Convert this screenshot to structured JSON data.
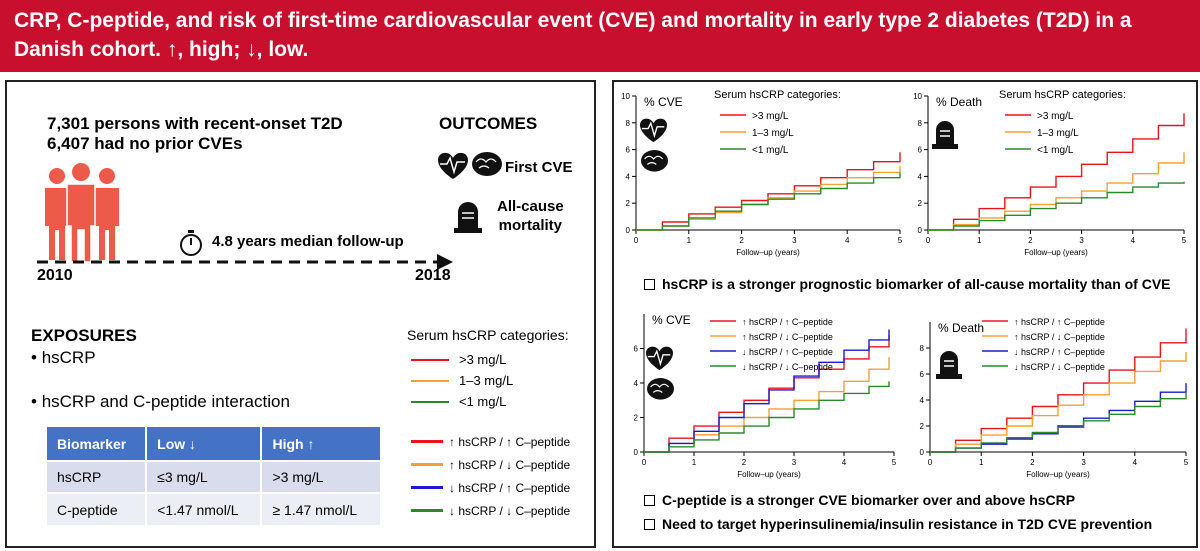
{
  "title": "CRP, C-peptide, and risk of first-time cardiovascular event (CVE) and mortality in early type 2 diabetes (T2D) in a Danish cohort. ↑, high; ↓, low.",
  "left": {
    "cohort_line1": "7,301 persons with recent-onset T2D",
    "cohort_line2": "6,407 had no prior CVEs",
    "outcomes_heading": "OUTCOMES",
    "outcome_cve": "First CVE",
    "outcome_mortality_1": "All-cause",
    "outcome_mortality_2": "mortality",
    "followup": "4.8 years median follow-up",
    "year_start": "2010",
    "year_end": "2018",
    "exposures_heading": "EXPOSURES",
    "exposures": [
      "hsCRP",
      "hsCRP and C-peptide interaction"
    ],
    "table": {
      "headers": [
        "Biomarker",
        "Low ↓",
        "High ↑"
      ],
      "rows": [
        [
          "hsCRP",
          "≤3 mg/L",
          ">3 mg/L"
        ],
        [
          "C-peptide",
          "<1.47 nmol/L",
          "≥ 1.47 nmol/L"
        ]
      ]
    },
    "legend_hs_title": "Serum hsCRP categories:",
    "legend_hs": [
      {
        "label": ">3 mg/L",
        "color": "#e8141c"
      },
      {
        "label": "1–3 mg/L",
        "color": "#f5a133"
      },
      {
        "label": "<1 mg/L",
        "color": "#2a8a2a"
      }
    ],
    "legend_int": [
      {
        "label": "↑ hsCRP / ↑ C–peptide",
        "color": "#e8141c"
      },
      {
        "label": "↑ hsCRP / ↓ C–peptide",
        "color": "#f5a133"
      },
      {
        "label": "↓ hsCRP / ↑ C–peptide",
        "color": "#1a1ad0"
      },
      {
        "label": "↓ hsCRP / ↓ C–peptide",
        "color": "#2a8a2a"
      }
    ]
  },
  "right": {
    "takeaway_1": "hsCRP is a stronger prognostic biomarker of all-cause mortality than of CVE",
    "takeaway_2": "C-peptide is a stronger CVE biomarker over and above hsCRP",
    "takeaway_3": "Need to target hyperinsulinemia/insulin resistance in T2D CVE prevention"
  },
  "chart_data": [
    {
      "type": "line",
      "id": "cve-hscrp",
      "ylabel": "% CVE",
      "xlabel": "Follow–up (years)",
      "legend_title": "Serum hsCRP categories:",
      "xlim": [
        0,
        5
      ],
      "ylim": [
        0,
        10
      ],
      "xticks": [
        0,
        1,
        2,
        3,
        4,
        5
      ],
      "yticks": [
        0,
        2,
        4,
        6,
        8,
        10
      ],
      "series": [
        {
          "name": ">3 mg/L",
          "color": "#e8141c",
          "x": [
            0,
            0.5,
            1,
            1.5,
            2,
            2.5,
            3,
            3.5,
            4,
            4.5,
            5
          ],
          "y": [
            0,
            0.6,
            1.2,
            1.7,
            2.2,
            2.7,
            3.3,
            3.9,
            4.5,
            5.1,
            5.8
          ]
        },
        {
          "name": "1–3 mg/L",
          "color": "#f5a133",
          "x": [
            0,
            0.5,
            1,
            1.5,
            2,
            2.5,
            3,
            3.5,
            4,
            4.5,
            5
          ],
          "y": [
            0,
            0.3,
            0.8,
            1.3,
            1.9,
            2.4,
            2.9,
            3.4,
            3.9,
            4.3,
            4.8
          ]
        },
        {
          "name": "<1 mg/L",
          "color": "#2a8a2a",
          "x": [
            0,
            0.5,
            1,
            1.5,
            2,
            2.5,
            3,
            3.5,
            4,
            4.5,
            5
          ],
          "y": [
            0,
            0.3,
            0.9,
            1.4,
            1.9,
            2.3,
            2.7,
            3.1,
            3.5,
            3.9,
            4.3
          ]
        }
      ]
    },
    {
      "type": "line",
      "id": "death-hscrp",
      "ylabel": "% Death",
      "xlabel": "Follow–up (years)",
      "legend_title": "Serum hsCRP categories:",
      "xlim": [
        0,
        5
      ],
      "ylim": [
        0,
        10
      ],
      "xticks": [
        0,
        1,
        2,
        3,
        4,
        5
      ],
      "yticks": [
        0,
        2,
        4,
        6,
        8,
        10
      ],
      "series": [
        {
          "name": ">3 mg/L",
          "color": "#e8141c",
          "x": [
            0,
            0.5,
            1,
            1.5,
            2,
            2.5,
            3,
            3.5,
            4,
            4.5,
            5
          ],
          "y": [
            0,
            0.8,
            1.6,
            2.4,
            3.2,
            4.0,
            4.9,
            5.8,
            6.8,
            7.8,
            8.7
          ]
        },
        {
          "name": "1–3 mg/L",
          "color": "#f5a133",
          "x": [
            0,
            0.5,
            1,
            1.5,
            2,
            2.5,
            3,
            3.5,
            4,
            4.5,
            5
          ],
          "y": [
            0,
            0.4,
            0.9,
            1.4,
            1.9,
            2.4,
            2.9,
            3.5,
            4.2,
            5.0,
            5.8
          ]
        },
        {
          "name": "<1 mg/L",
          "color": "#2a8a2a",
          "x": [
            0,
            0.5,
            1,
            1.5,
            2,
            2.5,
            3,
            3.5,
            4,
            4.5,
            5
          ],
          "y": [
            0,
            0.3,
            0.7,
            1.1,
            1.6,
            2.0,
            2.4,
            2.8,
            3.2,
            3.5,
            3.6
          ]
        }
      ]
    },
    {
      "type": "line",
      "id": "cve-interaction",
      "ylabel": "% CVE",
      "xlabel": "Follow–up (years)",
      "xlim": [
        0,
        5
      ],
      "ylim": [
        0,
        8
      ],
      "xticks": [
        0,
        1,
        2,
        3,
        4,
        5
      ],
      "yticks": [
        0,
        2,
        4,
        6
      ],
      "series": [
        {
          "name": "↑ hsCRP / ↑ C–peptide",
          "color": "#e8141c",
          "x": [
            0,
            0.5,
            1,
            1.5,
            2,
            2.5,
            3,
            3.5,
            4,
            4.5,
            4.9
          ],
          "y": [
            0,
            0.8,
            1.5,
            2.3,
            3.0,
            3.7,
            4.3,
            4.8,
            5.4,
            6.1,
            6.8
          ]
        },
        {
          "name": "↑ hsCRP / ↓ C–peptide",
          "color": "#f5a133",
          "x": [
            0,
            0.5,
            1,
            1.5,
            2,
            2.5,
            3,
            3.5,
            4,
            4.5,
            4.9
          ],
          "y": [
            0,
            0.5,
            1.0,
            1.5,
            2.0,
            2.5,
            3.0,
            3.5,
            4.1,
            4.8,
            5.5
          ]
        },
        {
          "name": "↓ hsCRP / ↑ C–peptide",
          "color": "#1a1ad0",
          "x": [
            0,
            0.5,
            1,
            1.5,
            2,
            2.5,
            3,
            3.5,
            4,
            4.5,
            4.9
          ],
          "y": [
            0,
            0.5,
            1.2,
            2.0,
            2.8,
            3.6,
            4.4,
            5.2,
            5.9,
            6.5,
            7.1
          ]
        },
        {
          "name": "↓ hsCRP / ↓ C–peptide",
          "color": "#2a8a2a",
          "x": [
            0,
            0.5,
            1,
            1.5,
            2,
            2.5,
            3,
            3.5,
            4,
            4.5,
            4.9
          ],
          "y": [
            0,
            0.3,
            0.7,
            1.1,
            1.5,
            2.0,
            2.5,
            3.0,
            3.4,
            3.8,
            4.1
          ]
        }
      ]
    },
    {
      "type": "line",
      "id": "death-interaction",
      "ylabel": "% Death",
      "xlabel": "Follow–up (years)",
      "xlim": [
        0,
        5
      ],
      "ylim": [
        0,
        10
      ],
      "xticks": [
        0,
        1,
        2,
        3,
        4,
        5
      ],
      "yticks": [
        0,
        2,
        4,
        6,
        8
      ],
      "series": [
        {
          "name": "↑ hsCRP / ↑ C–peptide",
          "color": "#e8141c",
          "x": [
            0,
            0.5,
            1,
            1.5,
            2,
            2.5,
            3,
            3.5,
            4,
            4.5,
            5
          ],
          "y": [
            0,
            0.9,
            1.8,
            2.6,
            3.5,
            4.4,
            5.3,
            6.3,
            7.3,
            8.4,
            9.5
          ]
        },
        {
          "name": "↑ hsCRP / ↓ C–peptide",
          "color": "#f5a133",
          "x": [
            0,
            0.5,
            1,
            1.5,
            2,
            2.5,
            3,
            3.5,
            4,
            4.5,
            5
          ],
          "y": [
            0,
            0.6,
            1.3,
            2.0,
            2.8,
            3.6,
            4.4,
            5.3,
            6.2,
            7.0,
            7.7
          ]
        },
        {
          "name": "↓ hsCRP / ↑ C–peptide",
          "color": "#1a1ad0",
          "x": [
            0,
            0.5,
            1,
            1.5,
            2,
            2.5,
            3,
            3.5,
            4,
            4.5,
            5
          ],
          "y": [
            0,
            0.3,
            0.6,
            1.0,
            1.4,
            2.0,
            2.6,
            3.2,
            3.9,
            4.6,
            5.3
          ]
        },
        {
          "name": "↓ hsCRP / ↓ C–peptide",
          "color": "#2a8a2a",
          "x": [
            0,
            0.5,
            1,
            1.5,
            2,
            2.5,
            3,
            3.5,
            4,
            4.5,
            5
          ],
          "y": [
            0,
            0.3,
            0.7,
            1.1,
            1.5,
            1.9,
            2.4,
            2.9,
            3.5,
            4.1,
            4.6
          ]
        }
      ]
    }
  ]
}
